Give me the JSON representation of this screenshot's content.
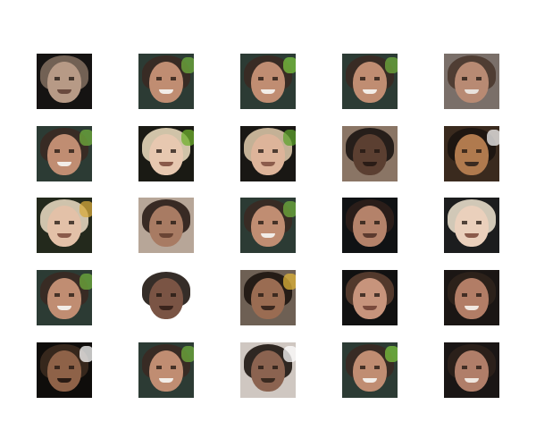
{
  "grid": {
    "rows": 5,
    "cols": 5,
    "tiles": [
      {
        "bg": "#151312",
        "hair": "#7c6a5c",
        "skin": "#b79a86",
        "mouth": "#6a4a3e",
        "accent": null
      },
      {
        "bg": "#2c3b34",
        "hair": "#3a2a22",
        "skin": "#c08d72",
        "mouth": "#f2ede8",
        "accent": "#6fae3c"
      },
      {
        "bg": "#2c3b34",
        "hair": "#3a2a22",
        "skin": "#c08d72",
        "mouth": "#f2ede8",
        "accent": "#7ac43d"
      },
      {
        "bg": "#2c3b34",
        "hair": "#3a2a22",
        "skin": "#c08d72",
        "mouth": "#f2ede8",
        "accent": "#6fae3c"
      },
      {
        "bg": "#7a6f69",
        "hair": "#4a372d",
        "skin": "#b88a73",
        "mouth": "#e9e2dc",
        "accent": null
      },
      {
        "bg": "#2c3b34",
        "hair": "#3a2a22",
        "skin": "#c08d72",
        "mouth": "#f2ede8",
        "accent": "#6fae3c"
      },
      {
        "bg": "#1a1a14",
        "hair": "#e4d6b8",
        "skin": "#e7c8b0",
        "mouth": "#8a5a4a",
        "accent": "#6fb02e"
      },
      {
        "bg": "#191714",
        "hair": "#d7c2a4",
        "skin": "#ddb49a",
        "mouth": "#8c5c4c",
        "accent": "#5ea32c"
      },
      {
        "bg": "#8a7565",
        "hair": "#1b1512",
        "skin": "#5b3f31",
        "mouth": "#2a1c16",
        "accent": null
      },
      {
        "bg": "#3a2a1e",
        "hair": "#1c1410",
        "skin": "#b07a4e",
        "mouth": "#3a2a20",
        "accent": "#f5f5f5"
      },
      {
        "bg": "#23291c",
        "hair": "#e2d4bd",
        "skin": "#e3c1a8",
        "mouth": "#8a5a4a",
        "accent": "#d7a93b"
      },
      {
        "bg": "#b7a698",
        "hair": "#2a1d17",
        "skin": "#a87b63",
        "mouth": "#6a4434",
        "accent": null
      },
      {
        "bg": "#2c3b34",
        "hair": "#3a2a22",
        "skin": "#c08d72",
        "mouth": "#f2ede8",
        "accent": "#6fae3c"
      },
      {
        "bg": "#101214",
        "hair": "#2d1f19",
        "skin": "#b4826a",
        "mouth": "#5c3a2e",
        "accent": null
      },
      {
        "bg": "#1c1d1e",
        "hair": "#e6dcc8",
        "skin": "#ead0bc",
        "mouth": "#8a5a4a",
        "accent": null
      },
      {
        "bg": "#2c3b34",
        "hair": "#3a2a22",
        "skin": "#c08d72",
        "mouth": "#f2ede8",
        "accent": "#6fae3c"
      },
      {
        "bg": "#ffffff",
        "hair": "#1f1611",
        "skin": "#7a5444",
        "mouth": "#3a241c",
        "accent": null
      },
      {
        "bg": "#6e6054",
        "hair": "#1d1510",
        "skin": "#9a6c52",
        "mouth": "#3b281f",
        "accent": "#e0b43a"
      },
      {
        "bg": "#111111",
        "hair": "#5a3e30",
        "skin": "#c7947c",
        "mouth": "#7a4a3c",
        "accent": null
      },
      {
        "bg": "#1b1614",
        "hair": "#2f221b",
        "skin": "#b27d66",
        "mouth": "#f1e8e1",
        "accent": null
      },
      {
        "bg": "#0f0d0b",
        "hair": "#3b2a1e",
        "skin": "#8e6248",
        "mouth": "#2a1b14",
        "accent": "#ffffff"
      },
      {
        "bg": "#2c3b34",
        "hair": "#3a2a22",
        "skin": "#c08d72",
        "mouth": "#f2ede8",
        "accent": "#6fae3c"
      },
      {
        "bg": "#cfc7c1",
        "hair": "#1d1511",
        "skin": "#8b6350",
        "mouth": "#3a2a20",
        "accent": "#ffffff"
      },
      {
        "bg": "#2c3b34",
        "hair": "#3a2a22",
        "skin": "#c08d72",
        "mouth": "#f2ede8",
        "accent": "#7ac43d"
      },
      {
        "bg": "#1a1615",
        "hair": "#2e211b",
        "skin": "#b07e69",
        "mouth": "#efe7e0",
        "accent": null
      }
    ]
  }
}
